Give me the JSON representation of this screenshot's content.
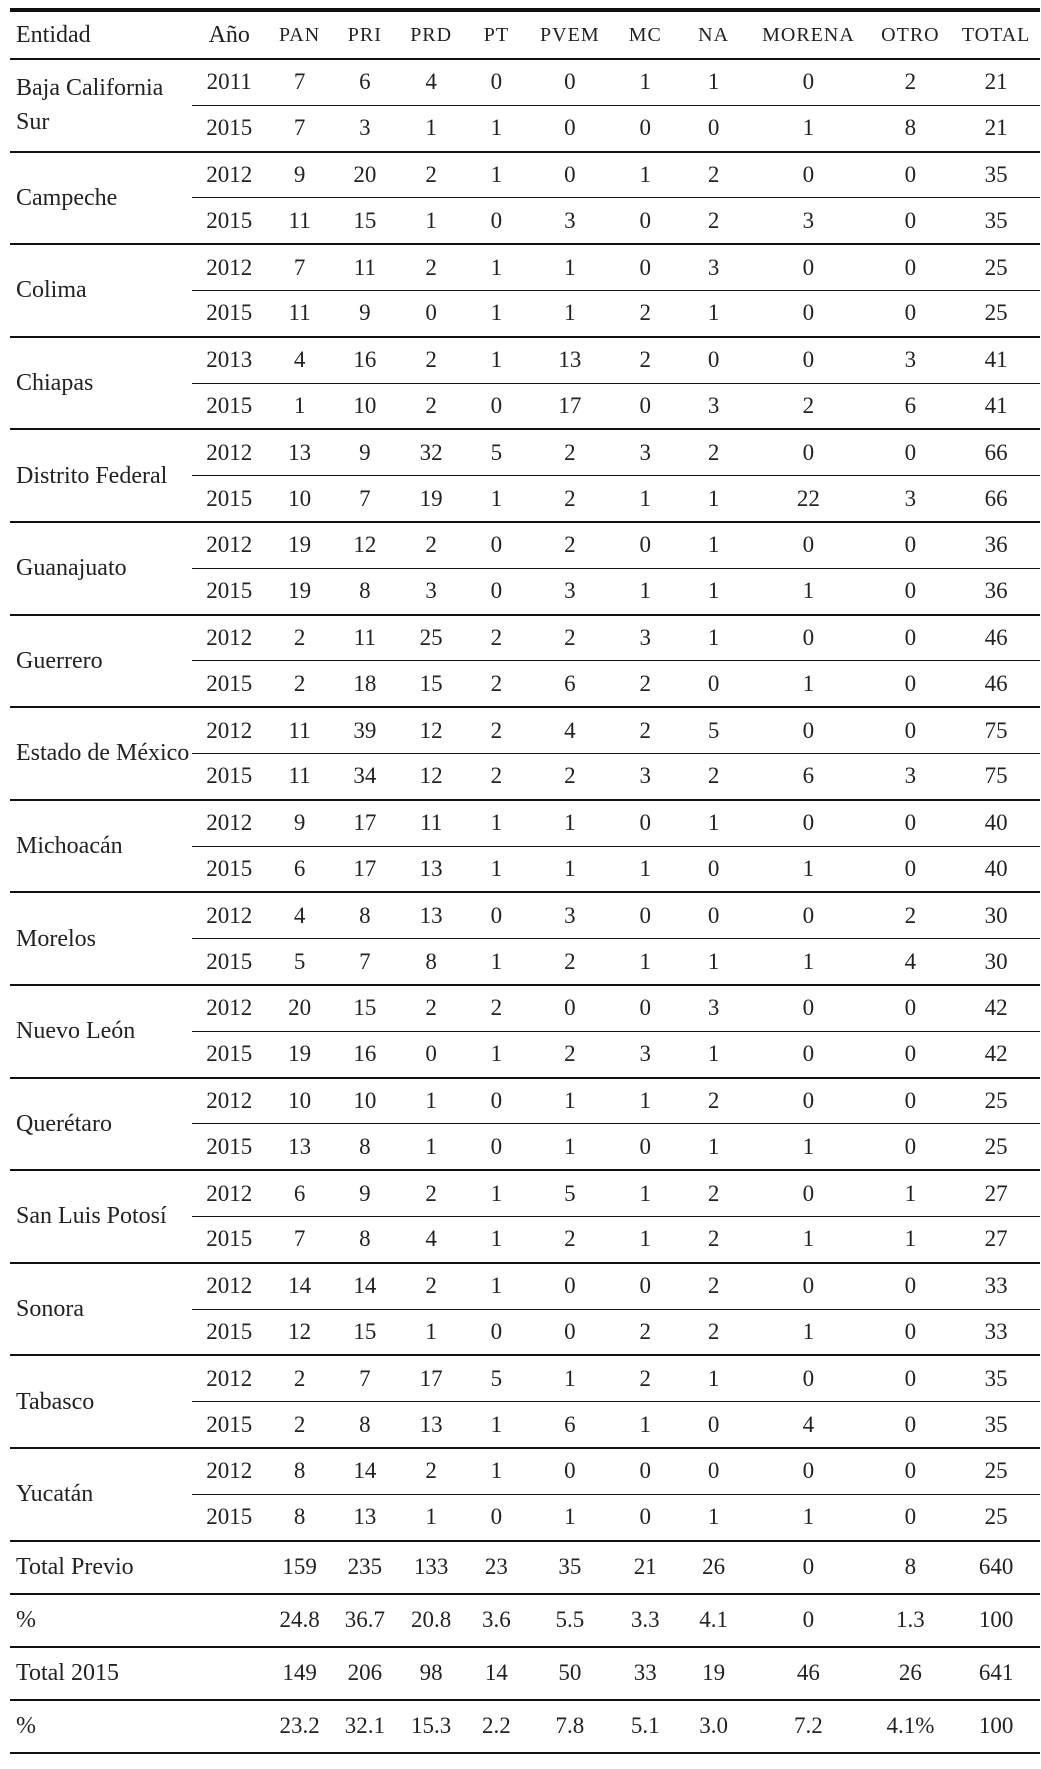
{
  "table": {
    "header": [
      "Entidad",
      "Año",
      "PAN",
      "PRI",
      "PRD",
      "PT",
      "PVEM",
      "MC",
      "NA",
      "MORENA",
      "OTRO",
      "TOTAL"
    ],
    "entities": [
      {
        "name": "Baja California Sur",
        "rows": [
          [
            "2011",
            "7",
            "6",
            "4",
            "0",
            "0",
            "1",
            "1",
            "0",
            "2",
            "21"
          ],
          [
            "2015",
            "7",
            "3",
            "1",
            "1",
            "0",
            "0",
            "0",
            "1",
            "8",
            "21"
          ]
        ]
      },
      {
        "name": "Campeche",
        "rows": [
          [
            "2012",
            "9",
            "20",
            "2",
            "1",
            "0",
            "1",
            "2",
            "0",
            "0",
            "35"
          ],
          [
            "2015",
            "11",
            "15",
            "1",
            "0",
            "3",
            "0",
            "2",
            "3",
            "0",
            "35"
          ]
        ]
      },
      {
        "name": "Colima",
        "rows": [
          [
            "2012",
            "7",
            "11",
            "2",
            "1",
            "1",
            "0",
            "3",
            "0",
            "0",
            "25"
          ],
          [
            "2015",
            "11",
            "9",
            "0",
            "1",
            "1",
            "2",
            "1",
            "0",
            "0",
            "25"
          ]
        ]
      },
      {
        "name": "Chiapas",
        "rows": [
          [
            "2013",
            "4",
            "16",
            "2",
            "1",
            "13",
            "2",
            "0",
            "0",
            "3",
            "41"
          ],
          [
            "2015",
            "1",
            "10",
            "2",
            "0",
            "17",
            "0",
            "3",
            "2",
            "6",
            "41"
          ]
        ]
      },
      {
        "name": "Distrito Federal",
        "rows": [
          [
            "2012",
            "13",
            "9",
            "32",
            "5",
            "2",
            "3",
            "2",
            "0",
            "0",
            "66"
          ],
          [
            "2015",
            "10",
            "7",
            "19",
            "1",
            "2",
            "1",
            "1",
            "22",
            "3",
            "66"
          ]
        ]
      },
      {
        "name": "Guanajuato",
        "rows": [
          [
            "2012",
            "19",
            "12",
            "2",
            "0",
            "2",
            "0",
            "1",
            "0",
            "0",
            "36"
          ],
          [
            "2015",
            "19",
            "8",
            "3",
            "0",
            "3",
            "1",
            "1",
            "1",
            "0",
            "36"
          ]
        ]
      },
      {
        "name": "Guerrero",
        "rows": [
          [
            "2012",
            "2",
            "11",
            "25",
            "2",
            "2",
            "3",
            "1",
            "0",
            "0",
            "46"
          ],
          [
            "2015",
            "2",
            "18",
            "15",
            "2",
            "6",
            "2",
            "0",
            "1",
            "0",
            "46"
          ]
        ]
      },
      {
        "name": "Estado de México",
        "rows": [
          [
            "2012",
            "11",
            "39",
            "12",
            "2",
            "4",
            "2",
            "5",
            "0",
            "0",
            "75"
          ],
          [
            "2015",
            "11",
            "34",
            "12",
            "2",
            "2",
            "3",
            "2",
            "6",
            "3",
            "75"
          ]
        ]
      },
      {
        "name": "Michoacán",
        "rows": [
          [
            "2012",
            "9",
            "17",
            "11",
            "1",
            "1",
            "0",
            "1",
            "0",
            "0",
            "40"
          ],
          [
            "2015",
            "6",
            "17",
            "13",
            "1",
            "1",
            "1",
            "0",
            "1",
            "0",
            "40"
          ]
        ]
      },
      {
        "name": "Morelos",
        "rows": [
          [
            "2012",
            "4",
            "8",
            "13",
            "0",
            "3",
            "0",
            "0",
            "0",
            "2",
            "30"
          ],
          [
            "2015",
            "5",
            "7",
            "8",
            "1",
            "2",
            "1",
            "1",
            "1",
            "4",
            "30"
          ]
        ]
      },
      {
        "name": "Nuevo León",
        "rows": [
          [
            "2012",
            "20",
            "15",
            "2",
            "2",
            "0",
            "0",
            "3",
            "0",
            "0",
            "42"
          ],
          [
            "2015",
            "19",
            "16",
            "0",
            "1",
            "2",
            "3",
            "1",
            "0",
            "0",
            "42"
          ]
        ]
      },
      {
        "name": "Querétaro",
        "rows": [
          [
            "2012",
            "10",
            "10",
            "1",
            "0",
            "1",
            "1",
            "2",
            "0",
            "0",
            "25"
          ],
          [
            "2015",
            "13",
            "8",
            "1",
            "0",
            "1",
            "0",
            "1",
            "1",
            "0",
            "25"
          ]
        ]
      },
      {
        "name": "San Luis Potosí",
        "rows": [
          [
            "2012",
            "6",
            "9",
            "2",
            "1",
            "5",
            "1",
            "2",
            "0",
            "1",
            "27"
          ],
          [
            "2015",
            "7",
            "8",
            "4",
            "1",
            "2",
            "1",
            "2",
            "1",
            "1",
            "27"
          ]
        ]
      },
      {
        "name": "Sonora",
        "rows": [
          [
            "2012",
            "14",
            "14",
            "2",
            "1",
            "0",
            "0",
            "2",
            "0",
            "0",
            "33"
          ],
          [
            "2015",
            "12",
            "15",
            "1",
            "0",
            "0",
            "2",
            "2",
            "1",
            "0",
            "33"
          ]
        ]
      },
      {
        "name": "Tabasco",
        "rows": [
          [
            "2012",
            "2",
            "7",
            "17",
            "5",
            "1",
            "2",
            "1",
            "0",
            "0",
            "35"
          ],
          [
            "2015",
            "2",
            "8",
            "13",
            "1",
            "6",
            "1",
            "0",
            "4",
            "0",
            "35"
          ]
        ]
      },
      {
        "name": "Yucatán",
        "rows": [
          [
            "2012",
            "8",
            "14",
            "2",
            "1",
            "0",
            "0",
            "0",
            "0",
            "0",
            "25"
          ],
          [
            "2015",
            "8",
            "13",
            "1",
            "0",
            "1",
            "0",
            "1",
            "1",
            "0",
            "25"
          ]
        ]
      }
    ],
    "totals": [
      {
        "label": "Total Previo",
        "values": [
          "159",
          "235",
          "133",
          "23",
          "35",
          "21",
          "26",
          "0",
          "8",
          "640"
        ]
      },
      {
        "label": "%",
        "values": [
          "24.8",
          "36.7",
          "20.8",
          "3.6",
          "5.5",
          "3.3",
          "4.1",
          "0",
          "1.3",
          "100"
        ]
      },
      {
        "label": "Total 2015",
        "values": [
          "149",
          "206",
          "98",
          "14",
          "50",
          "33",
          "19",
          "46",
          "26",
          "641"
        ]
      },
      {
        "label": "%",
        "values": [
          "23.2",
          "32.1",
          "15.3",
          "2.2",
          "7.8",
          "5.1",
          "3.0",
          "7.2",
          "4.1%",
          "100"
        ]
      }
    ]
  }
}
